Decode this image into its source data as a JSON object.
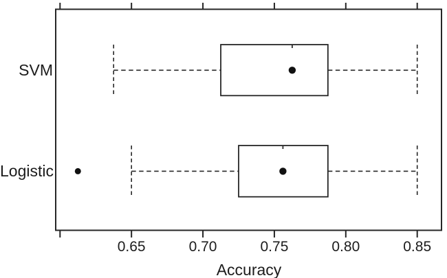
{
  "figure": {
    "background": "#ffffff",
    "line_color": "#262626",
    "text_color": "#1c1c1c"
  },
  "chart_data": {
    "type": "boxplot",
    "orientation": "horizontal",
    "title": "",
    "xlabel": "Accuracy",
    "ylabel": "",
    "xlim": [
      0.597,
      0.867
    ],
    "x_ticks": [
      0.6,
      0.65,
      0.7,
      0.75,
      0.8,
      0.85
    ],
    "x_tick_labels": [
      "",
      "0.65",
      "0.70",
      "0.75",
      "0.80",
      "0.85"
    ],
    "grid": "off",
    "legend": "none",
    "categories": [
      "SVM",
      "Logistic"
    ],
    "series": [
      {
        "name": "SVM",
        "whisker_low": 0.6375,
        "q1": 0.7125,
        "center_dot": 0.7625,
        "q3": 0.7875,
        "whisker_high": 0.85,
        "outliers": []
      },
      {
        "name": "Logistic",
        "whisker_low": 0.65,
        "q1": 0.725,
        "center_dot": 0.756,
        "q3": 0.7875,
        "whisker_high": 0.85,
        "outliers": [
          0.6125
        ]
      }
    ],
    "style_notes": "whiskers and whisker caps drawn as dashed black lines; boxes hollow; filled black dot marks center value; filled black dot outlier left of Logistic lower whisker"
  }
}
